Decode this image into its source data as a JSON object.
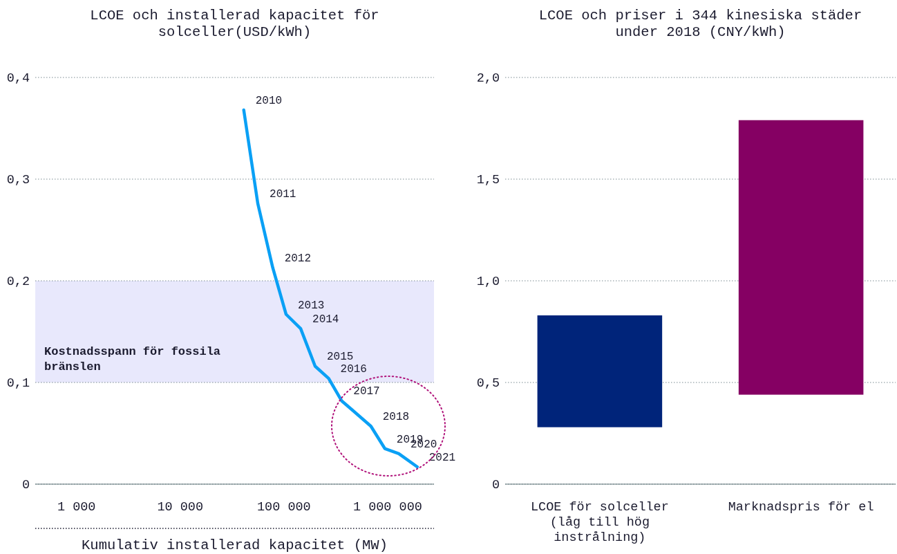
{
  "chart_data": [
    {
      "type": "line",
      "title": "LCOE och installerad kapacitet för solceller(USD/kWh)",
      "xlabel": "Kumulativ installerad kapacitet (MW)",
      "log": "x",
      "grid": "y",
      "xlim": [
        400,
        2800000
      ],
      "xticks": [
        {
          "value": 1000,
          "label": "1 000"
        },
        {
          "value": 10000,
          "label": "10 000"
        },
        {
          "value": 100000,
          "label": "100 000"
        },
        {
          "value": 1000000,
          "label": "1 000 000"
        }
      ],
      "ylim": [
        0,
        0.4
      ],
      "yticks": [
        0,
        {
          "value": 0.1,
          "label": "0,1"
        },
        {
          "value": 0.2,
          "label": "0,2"
        },
        {
          "value": 0.3,
          "label": "0,3"
        },
        {
          "value": 0.4,
          "label": "0,4"
        }
      ],
      "series": [
        {
          "color": "#0aa0f5",
          "x": [
            41000,
            56000,
            78000,
            105000,
            145000,
            200000,
            270000,
            360000,
            690000,
            940000,
            1280000,
            1930000
          ],
          "values": [
            0.368,
            0.276,
            0.213,
            0.167,
            0.153,
            0.116,
            0.104,
            0.082,
            0.057,
            0.035,
            0.03,
            0.017
          ]
        }
      ],
      "bands": [
        {
          "axis": "y",
          "from": 0.1,
          "to": 0.2,
          "label": "Kostnadsspann för fossila bränslen",
          "color": "#e8e8fc"
        }
      ],
      "annotations": [
        {
          "text": "2010",
          "x": 41000,
          "y": 0.368
        },
        {
          "text": "2011",
          "x": 56000,
          "y": 0.276
        },
        {
          "text": "2012",
          "x": 78000,
          "y": 0.213
        },
        {
          "text": "2013",
          "x": 105000,
          "y": 0.167
        },
        {
          "text": "2014",
          "x": 145000,
          "y": 0.153
        },
        {
          "text": "2015",
          "x": 200000,
          "y": 0.116
        },
        {
          "text": "2016",
          "x": 270000,
          "y": 0.104
        },
        {
          "text": "2017",
          "x": 360000,
          "y": 0.082
        },
        {
          "text": "2018",
          "x": 690000,
          "y": 0.057
        },
        {
          "text": "2019",
          "x": 940000,
          "y": 0.035
        },
        {
          "text": "2020",
          "x": 1280000,
          "y": 0.03
        },
        {
          "text": "2021",
          "x": 1930000,
          "y": 0.017
        }
      ]
    },
    {
      "type": "bar",
      "title": "LCOE och priser i 344 kinesiska städer under 2018 (CNY/kWh)",
      "grid": "y",
      "categories": [
        "LCOE för solceller (låg till hög instrålning)",
        "Marknadspris för el"
      ],
      "base": [
        0.28,
        0.44
      ],
      "values": [
        0.55,
        1.35
      ],
      "colors": [
        "#00247a",
        "#850063"
      ],
      "ylim": [
        0,
        2.0
      ],
      "yticks": [
        0,
        {
          "value": 0.5,
          "label": "0,5"
        },
        {
          "value": 1.0,
          "label": "1,0"
        },
        {
          "value": 1.5,
          "label": "1,5"
        },
        {
          "value": 2.0,
          "label": "2,0"
        }
      ]
    }
  ]
}
